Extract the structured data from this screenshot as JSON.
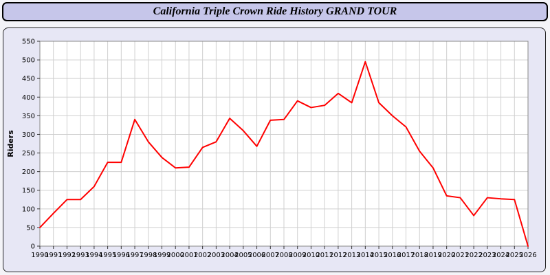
{
  "header": {
    "title": "California Triple Crown Ride History GRAND TOUR"
  },
  "chart_data": {
    "type": "line",
    "title": "California Triple Crown Ride History GRAND TOUR",
    "xlabel": "",
    "ylabel": "Riders",
    "ylim": [
      0,
      550
    ],
    "ytick_step": 50,
    "grid": true,
    "legend": "none",
    "line_color": "#ff0000",
    "x": [
      1990,
      1991,
      1992,
      1993,
      1994,
      1995,
      1996,
      1997,
      1998,
      1999,
      2000,
      2001,
      2002,
      2003,
      2004,
      2005,
      2006,
      2007,
      2008,
      2009,
      2010,
      2011,
      2012,
      2013,
      2014,
      2015,
      2016,
      2017,
      2018,
      2019,
      2020,
      2021,
      2022,
      2023,
      2024,
      2025,
      2026
    ],
    "values": [
      50,
      88,
      125,
      125,
      160,
      225,
      225,
      340,
      280,
      238,
      210,
      212,
      265,
      280,
      343,
      310,
      268,
      338,
      340,
      390,
      372,
      378,
      410,
      385,
      495,
      385,
      350,
      320,
      255,
      210,
      135,
      130,
      82,
      130,
      127,
      125,
      0
    ]
  }
}
